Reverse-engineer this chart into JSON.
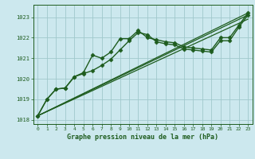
{
  "title": "Graphe pression niveau de la mer (hPa)",
  "background_color": "#cce8ee",
  "grid_color": "#a0c8cc",
  "line_color": "#1e5c1e",
  "marker_color": "#1e5c1e",
  "xlim": [
    -0.5,
    23.5
  ],
  "ylim": [
    1017.8,
    1023.6
  ],
  "yticks": [
    1018,
    1019,
    1020,
    1021,
    1022,
    1023
  ],
  "xticks": [
    0,
    1,
    2,
    3,
    4,
    5,
    6,
    7,
    8,
    9,
    10,
    11,
    12,
    13,
    14,
    15,
    16,
    17,
    18,
    19,
    20,
    21,
    22,
    23
  ],
  "series": [
    {
      "x": [
        0,
        1,
        2,
        3,
        4,
        5,
        6,
        7,
        8,
        9,
        10,
        11,
        12,
        13,
        14,
        15,
        16,
        17,
        18,
        19,
        20,
        21,
        22,
        23
      ],
      "y": [
        1018.2,
        1019.0,
        1019.5,
        1019.55,
        1020.1,
        1020.3,
        1021.15,
        1021.0,
        1021.3,
        1021.95,
        1021.95,
        1022.35,
        1022.0,
        1021.9,
        1021.8,
        1021.75,
        1021.55,
        1021.5,
        1021.45,
        1021.4,
        1022.0,
        1022.0,
        1022.6,
        1023.2
      ],
      "marker": "D",
      "markersize": 2.5,
      "linewidth": 1.0
    },
    {
      "x": [
        0,
        1,
        2,
        3,
        4,
        5,
        6,
        7,
        8,
        9,
        10,
        11,
        12,
        13,
        14,
        15,
        16,
        17,
        18,
        19,
        20,
        21,
        22,
        23
      ],
      "y": [
        1018.2,
        1019.0,
        1019.5,
        1019.55,
        1020.1,
        1020.25,
        1020.4,
        1020.65,
        1020.95,
        1021.4,
        1021.85,
        1022.25,
        1022.15,
        1021.8,
        1021.7,
        1021.65,
        1021.45,
        1021.4,
        1021.35,
        1021.3,
        1021.85,
        1021.85,
        1022.5,
        1023.1
      ],
      "marker": "D",
      "markersize": 2.5,
      "linewidth": 1.0
    },
    {
      "x": [
        0,
        23
      ],
      "y": [
        1018.2,
        1023.2
      ],
      "marker": null,
      "linewidth": 0.9
    },
    {
      "x": [
        0,
        23
      ],
      "y": [
        1018.2,
        1023.1
      ],
      "marker": null,
      "linewidth": 0.9
    },
    {
      "x": [
        0,
        23
      ],
      "y": [
        1018.2,
        1022.9
      ],
      "marker": null,
      "linewidth": 0.9
    }
  ]
}
